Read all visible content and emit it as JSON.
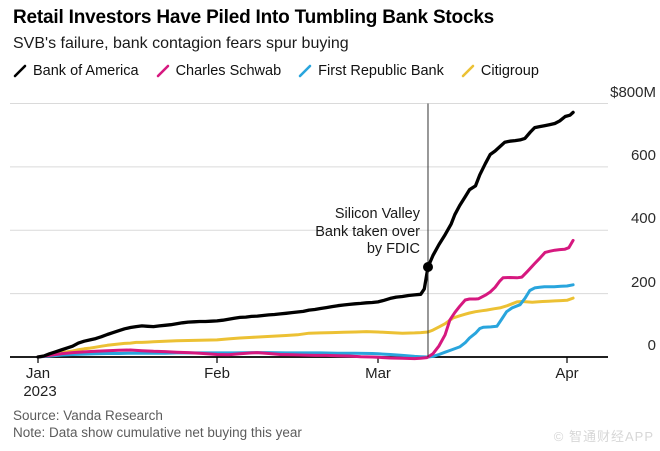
{
  "header": {
    "title": "Retail Investors Have Piled Into Tumbling Bank Stocks",
    "subtitle": "SVB's failure, bank contagion fears spur buying"
  },
  "footer": {
    "source": "Source: Vanda Research",
    "note": "Note: Data show cumulative net buying this year"
  },
  "watermark": "© 智通财经APP",
  "chart_data": {
    "type": "line",
    "title": "Retail Investors Have Piled Into Tumbling Bank Stocks",
    "subtitle": "SVB's failure, bank contagion fears spur buying",
    "unit": "USD millions, cumulative net buying in 2023",
    "grid": true,
    "legend_position": "top",
    "x_axis": {
      "unit": "days since Jan 1 2023",
      "ticks": [
        {
          "label": "Jan",
          "sublabel": "2023",
          "day": 0
        },
        {
          "label": "Feb",
          "sublabel": "",
          "day": 31
        },
        {
          "label": "Mar",
          "sublabel": "",
          "day": 59
        },
        {
          "label": "Apr",
          "sublabel": "",
          "day": 90
        }
      ]
    },
    "y_axis": {
      "range": [
        0,
        800
      ],
      "ticks": [
        {
          "label": "$800M",
          "value": 800
        },
        {
          "label": "600",
          "value": 600
        },
        {
          "label": "400",
          "value": 400
        },
        {
          "label": "200",
          "value": 200
        },
        {
          "label": "0",
          "value": 0
        }
      ]
    },
    "event": {
      "label_lines": [
        "Silicon Valley",
        "Bank taken over",
        "by FDIC"
      ],
      "day": 67.2,
      "marker_series": "Bank of America",
      "marker_value": 284
    },
    "series": [
      {
        "name": "Citigroup",
        "color": "#ecc134",
        "points": [
          [
            0,
            0
          ],
          [
            1,
            2
          ],
          [
            2,
            6
          ],
          [
            3,
            10
          ],
          [
            4,
            13
          ],
          [
            5,
            16
          ],
          [
            6,
            19
          ],
          [
            7,
            23
          ],
          [
            8,
            26
          ],
          [
            9,
            28
          ],
          [
            10,
            31
          ],
          [
            11,
            34
          ],
          [
            12,
            37
          ],
          [
            13,
            39
          ],
          [
            14,
            41
          ],
          [
            15,
            43
          ],
          [
            16,
            44
          ],
          [
            17,
            46
          ],
          [
            18,
            46
          ],
          [
            19,
            47
          ],
          [
            20,
            48
          ],
          [
            21,
            49
          ],
          [
            22,
            50
          ],
          [
            24,
            51
          ],
          [
            26,
            52
          ],
          [
            28,
            53
          ],
          [
            31,
            54
          ],
          [
            33,
            57
          ],
          [
            35,
            60
          ],
          [
            37,
            62
          ],
          [
            39,
            64
          ],
          [
            41,
            66
          ],
          [
            43,
            68
          ],
          [
            45,
            70
          ],
          [
            47,
            75
          ],
          [
            49,
            76
          ],
          [
            51,
            77
          ],
          [
            53,
            78
          ],
          [
            55,
            79
          ],
          [
            57,
            80
          ],
          [
            59,
            79
          ],
          [
            61,
            77
          ],
          [
            63,
            75
          ],
          [
            65,
            76
          ],
          [
            66,
            77
          ],
          [
            67.2,
            79
          ],
          [
            68,
            85
          ],
          [
            69,
            95
          ],
          [
            70,
            105
          ],
          [
            71.3,
            123
          ],
          [
            72.4,
            130
          ],
          [
            73.3,
            135
          ],
          [
            74,
            139
          ],
          [
            75,
            143
          ],
          [
            76.1,
            146
          ],
          [
            76.8,
            148
          ],
          [
            78,
            152
          ],
          [
            79,
            155
          ],
          [
            80.2,
            162
          ],
          [
            81,
            168
          ],
          [
            81.8,
            174
          ],
          [
            82.6,
            175
          ],
          [
            83.5,
            174
          ],
          [
            84.3,
            173
          ],
          [
            85.1,
            174
          ],
          [
            86,
            175
          ],
          [
            87,
            176
          ],
          [
            88,
            177
          ],
          [
            89,
            178
          ],
          [
            90,
            179
          ],
          [
            91,
            186
          ]
        ]
      },
      {
        "name": "First Republic Bank",
        "color": "#29a5dd",
        "points": [
          [
            0,
            0
          ],
          [
            2,
            3
          ],
          [
            4,
            6
          ],
          [
            6,
            8
          ],
          [
            8,
            9
          ],
          [
            10,
            10
          ],
          [
            12,
            11
          ],
          [
            14,
            11
          ],
          [
            16,
            12
          ],
          [
            18,
            12
          ],
          [
            20,
            12
          ],
          [
            22,
            12
          ],
          [
            24,
            13
          ],
          [
            26,
            13
          ],
          [
            28,
            13
          ],
          [
            31,
            13
          ],
          [
            34,
            13
          ],
          [
            37,
            14
          ],
          [
            40,
            14
          ],
          [
            43,
            13
          ],
          [
            46,
            13
          ],
          [
            49,
            13
          ],
          [
            52,
            12
          ],
          [
            55,
            12
          ],
          [
            58,
            11
          ],
          [
            59,
            10
          ],
          [
            61,
            8
          ],
          [
            63,
            5
          ],
          [
            65,
            2
          ],
          [
            66,
            1
          ],
          [
            67.2,
            0
          ],
          [
            68,
            2
          ],
          [
            69,
            8
          ],
          [
            70,
            15
          ],
          [
            71,
            22
          ],
          [
            72.4,
            32
          ],
          [
            73.3,
            45
          ],
          [
            74,
            60
          ],
          [
            75,
            75
          ],
          [
            75.7,
            90
          ],
          [
            76.3,
            94
          ],
          [
            77.5,
            95
          ],
          [
            78.5,
            97
          ],
          [
            79.3,
            120
          ],
          [
            80.1,
            143
          ],
          [
            81,
            155
          ],
          [
            82.3,
            165
          ],
          [
            83.1,
            185
          ],
          [
            83.9,
            210
          ],
          [
            84.7,
            218
          ],
          [
            85.5,
            220
          ],
          [
            86.3,
            222
          ],
          [
            87.9,
            222
          ],
          [
            89,
            223
          ],
          [
            90,
            224
          ],
          [
            91,
            228
          ]
        ]
      },
      {
        "name": "Charles Schwab",
        "color": "#d6187f",
        "points": [
          [
            0,
            0
          ],
          [
            2,
            5
          ],
          [
            4,
            10
          ],
          [
            6,
            14
          ],
          [
            8,
            16
          ],
          [
            10,
            18
          ],
          [
            12,
            20
          ],
          [
            14,
            21
          ],
          [
            16,
            22
          ],
          [
            18,
            20
          ],
          [
            20,
            18
          ],
          [
            22,
            17
          ],
          [
            24,
            15
          ],
          [
            26,
            14
          ],
          [
            28,
            12
          ],
          [
            31,
            8
          ],
          [
            33,
            7
          ],
          [
            35,
            10
          ],
          [
            37,
            13
          ],
          [
            38,
            14
          ],
          [
            40,
            11
          ],
          [
            42,
            8
          ],
          [
            44,
            7
          ],
          [
            46,
            6
          ],
          [
            48,
            5
          ],
          [
            50,
            5
          ],
          [
            52,
            4
          ],
          [
            54,
            3
          ],
          [
            56,
            1
          ],
          [
            58,
            0
          ],
          [
            59,
            -1
          ],
          [
            61,
            -3
          ],
          [
            63,
            -4
          ],
          [
            65,
            -5
          ],
          [
            66,
            -4
          ],
          [
            67,
            -2
          ],
          [
            67.2,
            0
          ],
          [
            68,
            10
          ],
          [
            69,
            35
          ],
          [
            70,
            70
          ],
          [
            70.8,
            117
          ],
          [
            71.6,
            140
          ],
          [
            72.4,
            160
          ],
          [
            73.3,
            180
          ],
          [
            74,
            183
          ],
          [
            75,
            183
          ],
          [
            75.5,
            184
          ],
          [
            76.6,
            195
          ],
          [
            77.4,
            205
          ],
          [
            78.2,
            220
          ],
          [
            79,
            240
          ],
          [
            79.5,
            250
          ],
          [
            80.6,
            251
          ],
          [
            81.8,
            250
          ],
          [
            82.6,
            252
          ],
          [
            83.5,
            270
          ],
          [
            84.7,
            295
          ],
          [
            85.6,
            313
          ],
          [
            86.4,
            330
          ],
          [
            87.2,
            334
          ],
          [
            88,
            337
          ],
          [
            88.8,
            339
          ],
          [
            89.6,
            340
          ],
          [
            90.3,
            345
          ],
          [
            91,
            368
          ]
        ]
      },
      {
        "name": "Bank of America",
        "color": "#000000",
        "points": [
          [
            0,
            0
          ],
          [
            1,
            3
          ],
          [
            2,
            10
          ],
          [
            3,
            16
          ],
          [
            4,
            22
          ],
          [
            5,
            28
          ],
          [
            6,
            34
          ],
          [
            7,
            44
          ],
          [
            8,
            50
          ],
          [
            9,
            54
          ],
          [
            10,
            58
          ],
          [
            11,
            64
          ],
          [
            12,
            71
          ],
          [
            13,
            77
          ],
          [
            14,
            83
          ],
          [
            15,
            89
          ],
          [
            16,
            93
          ],
          [
            17,
            96
          ],
          [
            18,
            98
          ],
          [
            19,
            97
          ],
          [
            20,
            96
          ],
          [
            21,
            98
          ],
          [
            22,
            100
          ],
          [
            23,
            102
          ],
          [
            24,
            105
          ],
          [
            25,
            108
          ],
          [
            26,
            110
          ],
          [
            27,
            111
          ],
          [
            28,
            112
          ],
          [
            29,
            112
          ],
          [
            30,
            113
          ],
          [
            31,
            114
          ],
          [
            32,
            116
          ],
          [
            33,
            119
          ],
          [
            34,
            122
          ],
          [
            35,
            125
          ],
          [
            36,
            126
          ],
          [
            37,
            128
          ],
          [
            38,
            129
          ],
          [
            39,
            131
          ],
          [
            40,
            133
          ],
          [
            41,
            134
          ],
          [
            42,
            136
          ],
          [
            43,
            138
          ],
          [
            44,
            140
          ],
          [
            45,
            142
          ],
          [
            46,
            144
          ],
          [
            47,
            148
          ],
          [
            48,
            150
          ],
          [
            49,
            153
          ],
          [
            50,
            156
          ],
          [
            51,
            159
          ],
          [
            52,
            162
          ],
          [
            53,
            164
          ],
          [
            54,
            166
          ],
          [
            55,
            168
          ],
          [
            56,
            169
          ],
          [
            57,
            171
          ],
          [
            58,
            172
          ],
          [
            59,
            174
          ],
          [
            60,
            179
          ],
          [
            61,
            185
          ],
          [
            62,
            189
          ],
          [
            63,
            191
          ],
          [
            64,
            194
          ],
          [
            65,
            196
          ],
          [
            66,
            198
          ],
          [
            66.6,
            215
          ],
          [
            67.2,
            284
          ],
          [
            68,
            320
          ],
          [
            69,
            355
          ],
          [
            70,
            386
          ],
          [
            71,
            420
          ],
          [
            71.6,
            449
          ],
          [
            72.4,
            478
          ],
          [
            73.3,
            506
          ],
          [
            74,
            528
          ],
          [
            75,
            540
          ],
          [
            75.7,
            575
          ],
          [
            76.6,
            610
          ],
          [
            77.4,
            639
          ],
          [
            78.2,
            650
          ],
          [
            79,
            664
          ],
          [
            79.8,
            678
          ],
          [
            80.6,
            681
          ],
          [
            81.5,
            683
          ],
          [
            82.3,
            685
          ],
          [
            83.1,
            690
          ],
          [
            84,
            710
          ],
          [
            84.7,
            724
          ],
          [
            85.5,
            727
          ],
          [
            86.3,
            730
          ],
          [
            87.1,
            733
          ],
          [
            88,
            737
          ],
          [
            88.8,
            745
          ],
          [
            89.7,
            759
          ],
          [
            90.5,
            763
          ],
          [
            91,
            772
          ]
        ]
      }
    ]
  },
  "legend_order": [
    3,
    2,
    1,
    0
  ]
}
